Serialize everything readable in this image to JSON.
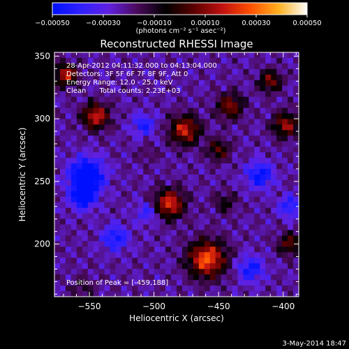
{
  "colorbar": {
    "ticks": [
      "-0.00050",
      "-0.00030",
      "-0.00010",
      "0.00010",
      "0.00030",
      "0.00050"
    ],
    "unit_label": "(photons cm⁻² s⁻¹ asec⁻²)",
    "range": [
      -0.0005,
      0.0005
    ],
    "colormap": [
      "#0010ff",
      "#3020ff",
      "#6020e0",
      "#4a0a5a",
      "#000000",
      "#5a0000",
      "#c01010",
      "#ff5000",
      "#ffb020",
      "#ffffff"
    ]
  },
  "annotations": [
    "28-Apr-2012 04:11:32.000 to 04:13:04.000",
    "Detectors: 3F 5F 6F 7F 8F 9F, Att 0",
    "Energy Range: 12.0 - 25.0 keV",
    "Clean      Total counts: 2.23E+03"
  ],
  "peak_label": "Position of Peak = [-459,188]",
  "footer_date": "3-May-2014 18:47",
  "chart_data": {
    "type": "heatmap",
    "title": "Reconstructed RHESSI Image",
    "xlabel": "Heliocentric X (arcsec)",
    "ylabel": "Heliocentric Y (arcsec)",
    "xlim": [
      -577,
      -388
    ],
    "ylim": [
      158,
      353
    ],
    "xticks": [
      -550,
      -500,
      -450,
      -400
    ],
    "yticks": [
      200,
      250,
      300,
      350
    ],
    "xtick_labels": [
      "−550",
      "−500",
      "−450",
      "−400"
    ],
    "ytick_labels": [
      "200",
      "250",
      "300",
      "350"
    ],
    "peak_position": [
      -459,
      188
    ],
    "sources": [
      {
        "x": -545,
        "y": 302,
        "peak": 0.00042,
        "sigma": 7
      },
      {
        "x": -568,
        "y": 335,
        "peak": 0.0004,
        "sigma": 6
      },
      {
        "x": -476,
        "y": 291,
        "peak": 0.0004,
        "sigma": 8
      },
      {
        "x": -488,
        "y": 232,
        "peak": 0.00044,
        "sigma": 8
      },
      {
        "x": -459,
        "y": 188,
        "peak": 0.0005,
        "sigma": 10
      },
      {
        "x": -441,
        "y": 310,
        "peak": 0.00032,
        "sigma": 7
      },
      {
        "x": -450,
        "y": 275,
        "peak": 0.00025,
        "sigma": 6
      },
      {
        "x": -398,
        "y": 295,
        "peak": 0.00034,
        "sigma": 7
      },
      {
        "x": -410,
        "y": 330,
        "peak": 0.0003,
        "sigma": 6
      },
      {
        "x": -395,
        "y": 200,
        "peak": 0.00028,
        "sigma": 6
      },
      {
        "x": -445,
        "y": 233,
        "peak": 0.00016,
        "sigma": 6
      },
      {
        "x": -505,
        "y": 272,
        "peak": 8e-05,
        "sigma": 5
      },
      {
        "x": -555,
        "y": 165,
        "peak": 0.00012,
        "sigma": 6
      }
    ],
    "negatives": [
      {
        "x": -552,
        "y": 255,
        "peak": -0.00045,
        "sigma": 9
      },
      {
        "x": -555,
        "y": 238,
        "peak": -0.00035,
        "sigma": 7
      },
      {
        "x": -530,
        "y": 205,
        "peak": -0.00025,
        "sigma": 7
      },
      {
        "x": -418,
        "y": 255,
        "peak": -0.0003,
        "sigma": 7
      },
      {
        "x": -505,
        "y": 225,
        "peak": -0.00018,
        "sigma": 6
      },
      {
        "x": -425,
        "y": 180,
        "peak": -0.00025,
        "sigma": 7
      },
      {
        "x": -508,
        "y": 295,
        "peak": -0.00022,
        "sigma": 6
      },
      {
        "x": -395,
        "y": 230,
        "peak": -0.00022,
        "sigma": 6
      }
    ],
    "background": -0.00022
  }
}
